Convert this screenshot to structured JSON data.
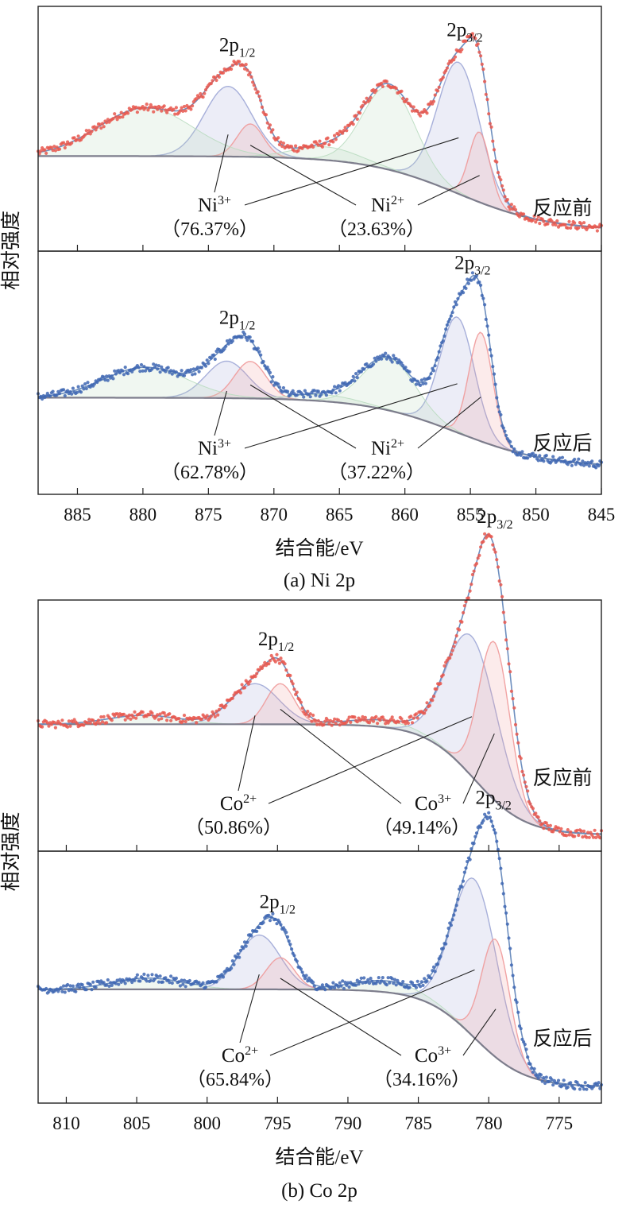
{
  "colors": {
    "before_points": "#e8584f",
    "after_points": "#3f67b3",
    "envelope": "#6e8fbf",
    "background_line": "#7d7d8c",
    "comp_high": "#9fa7d6",
    "comp_low": "#ef9a9a",
    "satellite": "#b9dcc0"
  },
  "ylabel": "相对强度",
  "chart_data": [
    {
      "id": "ni",
      "type": "line",
      "title": "(a) Ni 2p",
      "xlabel": "结合能/eV",
      "xlim": [
        888,
        845
      ],
      "xticks": [
        "885",
        "880",
        "875",
        "870",
        "865",
        "860",
        "855",
        "850",
        "845"
      ],
      "panels": [
        {
          "condition": "反应前",
          "point_color": "before",
          "peak_labels": [
            {
              "main": "2p",
              "sub": "1/2"
            },
            {
              "main": "2p",
              "sub": "3/2"
            }
          ],
          "peak_positions": [
            872.8,
            855.8
          ],
          "ion_a": {
            "label": "Ni",
            "sup": "3+",
            "pct": "（76.37%）"
          },
          "ion_b": {
            "label": "Ni",
            "sup": "2+",
            "pct": "（23.63%）"
          },
          "background_curve": {
            "pre": 0.39,
            "post": 0.05,
            "center": 856,
            "width": 3.5
          },
          "components": [
            {
              "name": "Ni3+ 2p3/2",
              "kind": "high",
              "center": 855.9,
              "amp": 0.6,
              "sigma": 1.6
            },
            {
              "name": "Ni2+ 2p3/2",
              "kind": "low",
              "center": 854.3,
              "amp": 0.32,
              "sigma": 0.8
            },
            {
              "name": "Ni3+ 2p1/2",
              "kind": "high",
              "center": 873.5,
              "amp": 0.32,
              "sigma": 1.8
            },
            {
              "name": "Ni2+ 2p1/2",
              "kind": "low",
              "center": 871.8,
              "amp": 0.15,
              "sigma": 1.0
            },
            {
              "name": "satellite",
              "kind": "sat",
              "center": 861.2,
              "amp": 0.38,
              "sigma": 2.0
            },
            {
              "name": "satellite",
              "kind": "sat",
              "center": 879.8,
              "amp": 0.22,
              "sigma": 3.6
            },
            {
              "name": "satellite",
              "kind": "sat",
              "center": 866,
              "amp": 0.06,
              "sigma": 2.5
            }
          ]
        },
        {
          "condition": "反应后",
          "point_color": "after",
          "peak_labels": [
            {
              "main": "2p",
              "sub": "1/2"
            },
            {
              "main": "2p",
              "sub": "3/2"
            }
          ],
          "peak_positions": [
            872.8,
            855.2
          ],
          "ion_a": {
            "label": "Ni",
            "sup": "3+",
            "pct": "（62.78%）"
          },
          "ion_b": {
            "label": "Ni",
            "sup": "2+",
            "pct": "（37.22%）"
          },
          "background_curve": {
            "pre": 0.4,
            "post": 0.08,
            "center": 856,
            "width": 3.5
          },
          "components": [
            {
              "name": "Ni3+ 2p3/2",
              "kind": "high",
              "center": 856.0,
              "amp": 0.53,
              "sigma": 1.3
            },
            {
              "name": "Ni2+ 2p3/2",
              "kind": "low",
              "center": 854.2,
              "amp": 0.5,
              "sigma": 0.9
            },
            {
              "name": "Ni3+ 2p1/2",
              "kind": "high",
              "center": 873.6,
              "amp": 0.17,
              "sigma": 1.6
            },
            {
              "name": "Ni2+ 2p1/2",
              "kind": "low",
              "center": 871.8,
              "amp": 0.17,
              "sigma": 1.2
            },
            {
              "name": "satellite",
              "kind": "sat",
              "center": 861.2,
              "amp": 0.24,
              "sigma": 2.0
            },
            {
              "name": "satellite",
              "kind": "sat",
              "center": 879.8,
              "amp": 0.14,
              "sigma": 3.2
            },
            {
              "name": "satellite",
              "kind": "sat",
              "center": 866,
              "amp": 0.03,
              "sigma": 2.5
            }
          ]
        }
      ]
    },
    {
      "id": "co",
      "type": "line",
      "title": "(b) Co 2p",
      "xlabel": "结合能/eV",
      "xlim": [
        812,
        772
      ],
      "xticks": [
        "810",
        "805",
        "800",
        "795",
        "790",
        "785",
        "780",
        "775"
      ],
      "panels": [
        {
          "condition": "反应前",
          "point_color": "before",
          "peak_labels": [
            {
              "main": "2p",
              "sub": "1/2"
            },
            {
              "main": "2p",
              "sub": "3/2"
            }
          ],
          "peak_positions": [
            795.1,
            779.9
          ],
          "ion_a": {
            "label": "Co",
            "sup": "2+",
            "pct": "（50.86%）"
          },
          "ion_b": {
            "label": "Co",
            "sup": "3+",
            "pct": "（49.14%）"
          },
          "background_curve": {
            "pre": 0.52,
            "post": 0.03,
            "center": 781,
            "width": 1.8
          },
          "components": [
            {
              "name": "Co2+ 2p3/2",
              "kind": "high",
              "center": 781.2,
              "amp": 0.62,
              "sigma": 1.8
            },
            {
              "name": "Co3+ 2p3/2",
              "kind": "low",
              "center": 779.6,
              "amp": 0.7,
              "sigma": 1.1
            },
            {
              "name": "Co2+ 2p1/2",
              "kind": "high",
              "center": 796.6,
              "amp": 0.18,
              "sigma": 1.7
            },
            {
              "name": "Co3+ 2p1/2",
              "kind": "low",
              "center": 794.8,
              "amp": 0.18,
              "sigma": 1.0
            },
            {
              "name": "satellite",
              "kind": "sat",
              "center": 787.5,
              "amp": 0.03,
              "sigma": 2.5
            },
            {
              "name": "satellite",
              "kind": "sat",
              "center": 804.5,
              "amp": 0.04,
              "sigma": 2.5
            }
          ]
        },
        {
          "condition": "反应后",
          "point_color": "after",
          "peak_labels": [
            {
              "main": "2p",
              "sub": "1/2"
            },
            {
              "main": "2p",
              "sub": "3/2"
            }
          ],
          "peak_positions": [
            795.0,
            780.0
          ],
          "ion_a": {
            "label": "Co",
            "sup": "2+",
            "pct": "（65.84%）"
          },
          "ion_b": {
            "label": "Co",
            "sup": "3+",
            "pct": "（34.16%）"
          },
          "background_curve": {
            "pre": 0.46,
            "post": 0.03,
            "center": 781,
            "width": 1.8
          },
          "components": [
            {
              "name": "Co2+ 2p3/2",
              "kind": "high",
              "center": 781.0,
              "amp": 0.7,
              "sigma": 1.6
            },
            {
              "name": "Co3+ 2p3/2",
              "kind": "low",
              "center": 779.5,
              "amp": 0.52,
              "sigma": 1.0
            },
            {
              "name": "Co2+ 2p1/2",
              "kind": "high",
              "center": 796.3,
              "amp": 0.24,
              "sigma": 1.5
            },
            {
              "name": "Co3+ 2p1/2",
              "kind": "low",
              "center": 794.8,
              "amp": 0.14,
              "sigma": 1.0
            },
            {
              "name": "satellite",
              "kind": "sat",
              "center": 787.2,
              "amp": 0.05,
              "sigma": 2.5
            },
            {
              "name": "satellite",
              "kind": "sat",
              "center": 804.2,
              "amp": 0.05,
              "sigma": 2.5
            }
          ]
        }
      ]
    }
  ]
}
